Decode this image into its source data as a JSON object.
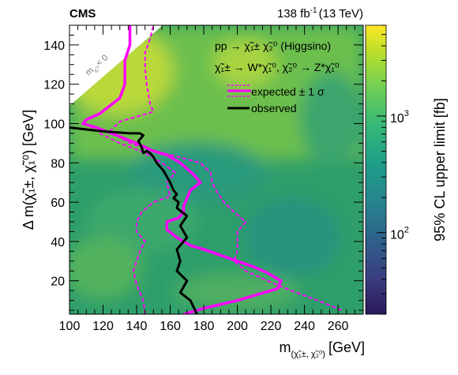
{
  "header": {
    "experiment": "CMS",
    "lumi_value": "138 fb",
    "lumi_exp": "-1",
    "lumi_energy": "(13 TeV)"
  },
  "chart_data": {
    "type": "heatmap",
    "title": "",
    "xlabel_main": "m",
    "xlabel_sub": "(χ̃₁±, χ̃₂⁰)",
    "xlabel_unit": "[GeV]",
    "ylabel": "Δ m(χ̃₁±, χ̃₁⁰) [GeV]",
    "zlabel": "95% CL upper limit [fb]",
    "xlim": [
      100,
      275
    ],
    "ylim": [
      3,
      150
    ],
    "zlim": [
      20,
      6000
    ],
    "zscale": "log",
    "xticks": [
      100,
      120,
      140,
      160,
      180,
      200,
      220,
      240,
      260
    ],
    "yticks": [
      20,
      40,
      60,
      80,
      100,
      120,
      140
    ],
    "zticks": [
      {
        "base": "10",
        "exp": "2",
        "value": 100
      },
      {
        "base": "10",
        "exp": "3",
        "value": 1000
      }
    ],
    "kinematic_label": "m",
    "kinematic_label_sub": "χ̃₁⁰",
    "kinematic_label_rest": "< 0",
    "legend_position": "top-right",
    "legend": {
      "process": "pp → χ̃₁± χ̃₂⁰  (Higgsino)",
      "decay": "χ̃₁± → W*χ̃₁⁰,  χ̃₂⁰ → Z*χ̃₁⁰",
      "expected": "expected ± 1 σ",
      "observed": "observed"
    },
    "colors": {
      "expected": "#ff00ff",
      "observed": "#000000",
      "palette": [
        "#2a1858",
        "#3a3c80",
        "#2e5f8a",
        "#26828e",
        "#1f9e89",
        "#35b779",
        "#6ece58",
        "#b5de2b",
        "#fde725"
      ]
    },
    "series": [
      {
        "name": "observed",
        "x": [
          176,
          172,
          166,
          170,
          164,
          166,
          164,
          170,
          166,
          170,
          164,
          165,
          162,
          164,
          162,
          160,
          158,
          156,
          154,
          152,
          150,
          148,
          146,
          144,
          143,
          141,
          143,
          144,
          142,
          136,
          120,
          100
        ],
        "y": [
          3,
          10,
          14,
          20,
          25,
          30,
          36,
          42,
          48,
          53,
          57,
          60,
          62,
          64,
          66,
          70,
          73,
          76,
          78,
          80,
          83,
          85,
          86,
          85,
          88,
          91,
          93,
          94,
          95,
          95,
          96,
          98
        ]
      },
      {
        "name": "expected",
        "x": [
          168,
          180,
          200,
          224,
          226,
          218,
          210,
          200,
          190,
          180,
          172,
          164,
          158,
          158,
          165,
          168,
          168,
          170,
          172,
          178,
          174,
          166,
          158,
          150,
          140,
          128,
          116,
          108,
          110,
          118,
          130,
          133,
          133,
          136,
          136
        ],
        "y": [
          3,
          6,
          10,
          16,
          20,
          24,
          27,
          30,
          33,
          36,
          38,
          42,
          46,
          50,
          52,
          55,
          58,
          62,
          66,
          70,
          74,
          80,
          84,
          86,
          90,
          94,
          98,
          100,
          102,
          105,
          113,
          120,
          132,
          140,
          150
        ]
      },
      {
        "name": "expected_plus_1sigma",
        "x": [
          262,
          248,
          232,
          218,
          205,
          198,
          200,
          200,
          200,
          205,
          198,
          192,
          188,
          185,
          184,
          178,
          165,
          150,
          136,
          124,
          130,
          150,
          148,
          146,
          145,
          145,
          148,
          150
        ],
        "y": [
          5,
          10,
          15,
          20,
          25,
          30,
          35,
          40,
          45,
          50,
          55,
          60,
          65,
          70,
          75,
          80,
          83,
          86,
          90,
          96,
          101,
          106,
          110,
          120,
          128,
          136,
          143,
          150
        ]
      },
      {
        "name": "expected_minus_1sigma",
        "x": [
          145,
          144,
          140,
          138,
          140,
          142,
          145,
          140,
          140,
          143,
          150,
          160,
          158,
          163,
          155,
          145,
          130,
          118,
          110
        ],
        "y": [
          3,
          10,
          18,
          25,
          30,
          35,
          40,
          45,
          50,
          55,
          60,
          63,
          70,
          75,
          80,
          85,
          90,
          95,
          100
        ]
      }
    ]
  }
}
